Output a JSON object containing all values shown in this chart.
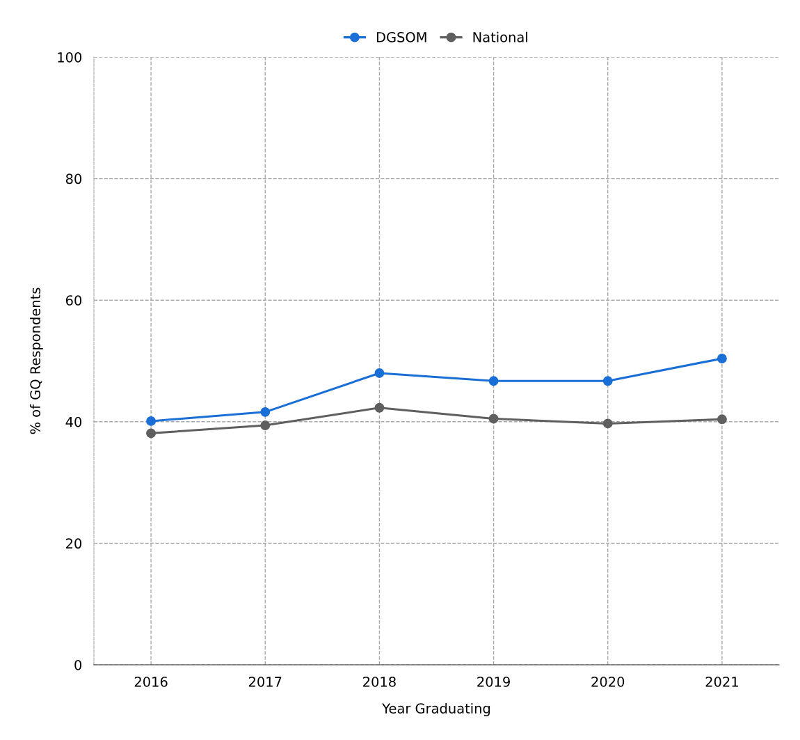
{
  "chart_data": {
    "type": "line",
    "xlabel": "Year Graduating",
    "ylabel": "% of GQ Respondents",
    "categories": [
      "2016",
      "2017",
      "2018",
      "2019",
      "2020",
      "2021"
    ],
    "series": [
      {
        "name": "DGSOM",
        "color": "#1a6fd6",
        "values": [
          40.1,
          41.6,
          48.0,
          46.7,
          46.7,
          50.4
        ]
      },
      {
        "name": "National",
        "color": "#5f5f5f",
        "values": [
          38.1,
          39.4,
          42.3,
          40.5,
          39.7,
          40.4
        ]
      }
    ],
    "ylim": [
      0,
      100
    ],
    "yticks": [
      0,
      20,
      40,
      60,
      80,
      100
    ],
    "grid": true,
    "legend": "top",
    "marker": "circle",
    "line_style": "solid"
  }
}
